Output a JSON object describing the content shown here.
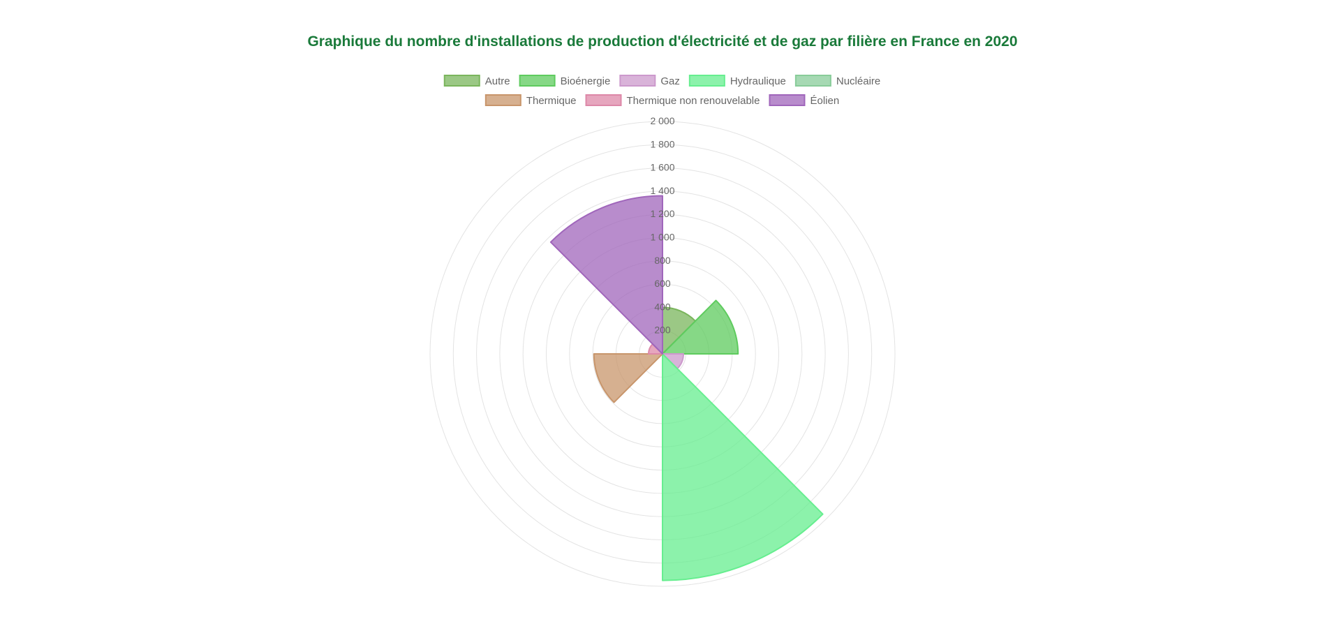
{
  "chart_data": {
    "type": "polarArea",
    "title": "Graphique du nombre d'installations de production d'électricité et de gaz par filière en France en 2020",
    "categories": [
      "Autre",
      "Bioénergie",
      "Gaz",
      "Hydraulique",
      "Nucléaire",
      "Thermique",
      "Thermique non renouvelable",
      "Éolien"
    ],
    "values": [
      400,
      650,
      180,
      1950,
      0,
      590,
      120,
      1360
    ],
    "colors": [
      "#7ab55c",
      "#5ecb5e",
      "#cc99cc",
      "#66ee8f",
      "#88cc99",
      "#c8956b",
      "#dd88a8",
      "#a066bb"
    ],
    "r_ticks": [
      "200",
      "400",
      "600",
      "800",
      "1 000",
      "1 200",
      "1 400",
      "1 600",
      "1 800",
      "2 000"
    ],
    "r_range": [
      0,
      2000
    ],
    "legend_position": "top",
    "grid": true
  }
}
